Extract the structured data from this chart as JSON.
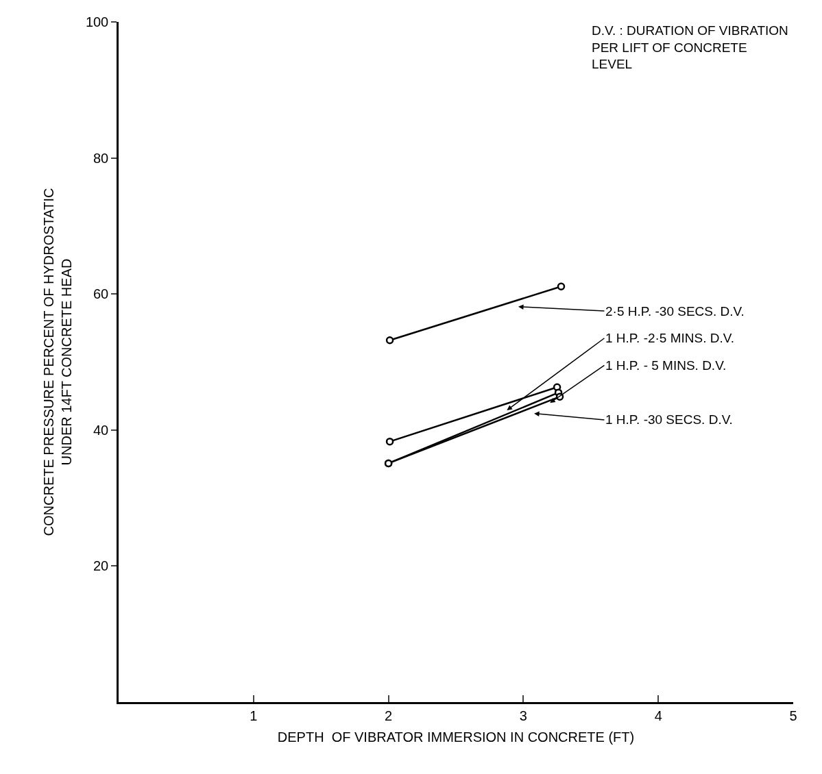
{
  "chart_data": {
    "type": "line",
    "xlabel": "DEPTH  OF VIBRATOR IMMERSION IN CONCRETE (FT)",
    "ylabel": "CONCRETE PRESSURE PERCENT OF HYDROSTATIC\nUNDER 14FT CONCRETE HEAD",
    "annotations": [
      "D.V. : DURATION OF VIBRATION\nPER LIFT OF CONCRETE\nLEVEL"
    ],
    "xlim": [
      0,
      5
    ],
    "xticks": [
      1,
      2,
      3,
      4,
      5
    ],
    "ylim": [
      0,
      100
    ],
    "yticks": [
      20,
      40,
      60,
      80,
      100
    ],
    "legend": false,
    "marker": "circle",
    "line_style": "solid",
    "series": [
      {
        "name": "2·5 H.P. -30 SECS. D.V.",
        "color": "#000000",
        "x": [
          2.01,
          3.28
        ],
        "values": [
          53.2,
          61.1
        ]
      },
      {
        "name": "1 H.P. -2·5 MINS. D.V.",
        "color": "#000000",
        "x": [
          2.01,
          3.25
        ],
        "values": [
          38.3,
          46.3
        ]
      },
      {
        "name": "1 H.P. - 5 MINS. D.V.",
        "color": "#000000",
        "x": [
          2.0,
          3.26
        ],
        "values": [
          35.1,
          45.5
        ]
      },
      {
        "name": "1 H.P. -30 SECS. D.V.",
        "color": "#000000",
        "x": [
          2.0,
          3.27
        ],
        "values": [
          35.1,
          44.9
        ]
      }
    ]
  }
}
